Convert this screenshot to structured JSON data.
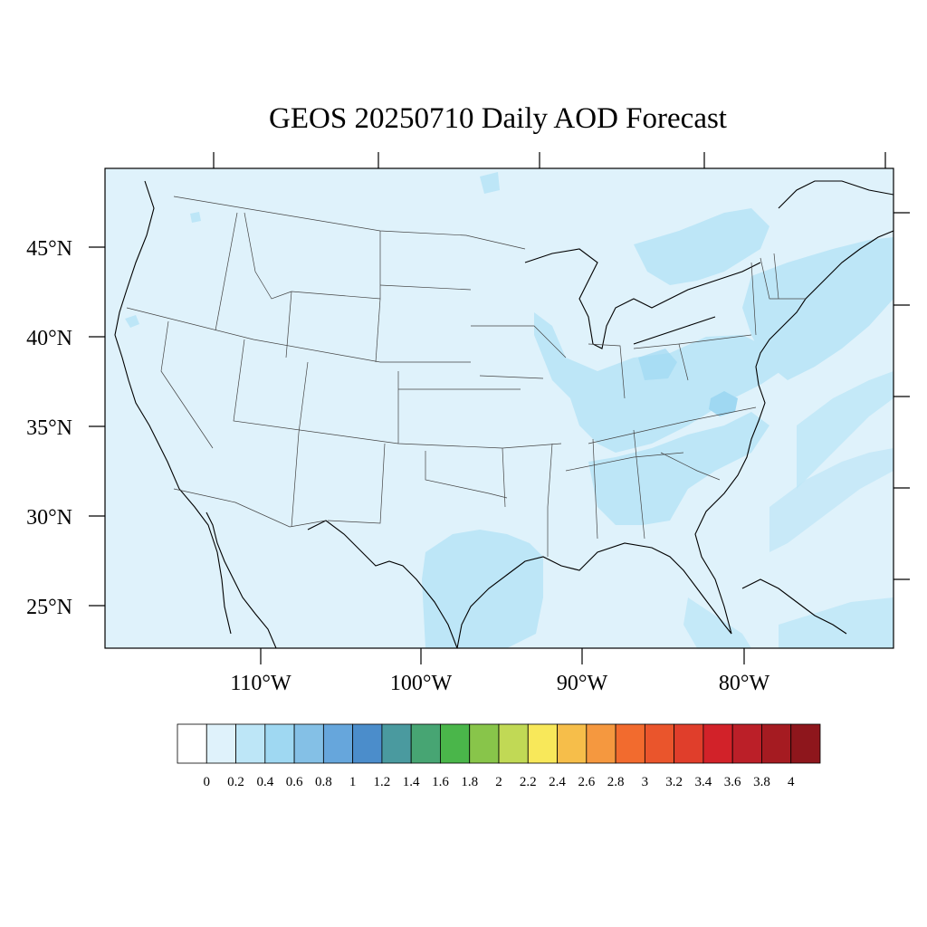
{
  "title": "GEOS 20250710 Daily AOD Forecast",
  "map": {
    "lat_labels": [
      "45°N",
      "40°N",
      "35°N",
      "30°N",
      "25°N"
    ],
    "lon_labels": [
      "110°W",
      "100°W",
      "90°W",
      "80°W"
    ],
    "ocean_color": "#dff2fb",
    "land_base_color": "#dff2fb",
    "haze_regions": [
      {
        "name": "texas-gulf-coast",
        "level": 0.3
      },
      {
        "name": "great-lakes-ohio-valley",
        "level": 0.3
      },
      {
        "name": "appalachian-carolinas",
        "level": 0.35
      },
      {
        "name": "northeast-atlantic-plume",
        "level": 0.3
      },
      {
        "name": "upper-midwest",
        "level": 0.25
      }
    ]
  },
  "colorbar": {
    "labels": [
      "0",
      "0.2",
      "0.4",
      "0.6",
      "0.8",
      "1",
      "1.2",
      "1.4",
      "1.6",
      "1.8",
      "2",
      "2.2",
      "2.4",
      "2.6",
      "2.8",
      "3",
      "3.2",
      "3.4",
      "3.6",
      "3.8",
      "4"
    ],
    "colors": [
      "#ffffff",
      "#dff2fb",
      "#bde6f7",
      "#9fd8f2",
      "#84c0e6",
      "#66a6dc",
      "#4b8dcb",
      "#4a9a9f",
      "#47a573",
      "#4ab64a",
      "#88c54a",
      "#c1d955",
      "#f8e85a",
      "#f6be4a",
      "#f5983f",
      "#f26b2e",
      "#ea552c",
      "#e03e2b",
      "#d22229",
      "#bb1f28",
      "#a51b21",
      "#8e161c"
    ]
  }
}
